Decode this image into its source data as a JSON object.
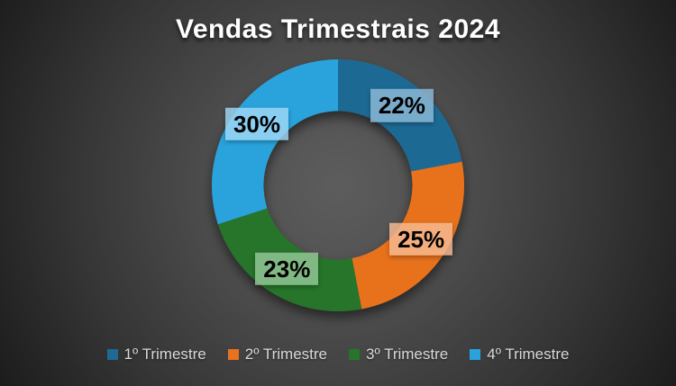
{
  "title": "Vendas Trimestrais 2024",
  "chart_data": {
    "type": "pie",
    "subtype": "donut",
    "title": "Vendas Trimestrais 2024",
    "categories": [
      "1º Trimestre",
      "2º Trimestre",
      "3º Trimestre",
      "4º Trimestre"
    ],
    "values": [
      22,
      25,
      23,
      30
    ],
    "unit": "percent",
    "data_labels": [
      "22%",
      "25%",
      "23%",
      "30%"
    ],
    "start_angle_deg": 0,
    "direction": "clockwise",
    "donut_hole_ratio": 0.59,
    "legend_position": "bottom",
    "series_colors": [
      "#1f6a94",
      "#e8721f",
      "#27742b",
      "#2aa3dc"
    ],
    "label_box_colors": [
      "rgba(141,186,214,0.82)",
      "rgba(247,188,148,0.82)",
      "rgba(150,200,152,0.82)",
      "rgba(160,216,245,0.82)"
    ]
  },
  "colors": {
    "background_center": "#5d5d5d",
    "background_edge": "#1c1c1c",
    "title_text": "#ffffff",
    "legend_text": "#d9d9d9",
    "label_text": "#000000"
  }
}
